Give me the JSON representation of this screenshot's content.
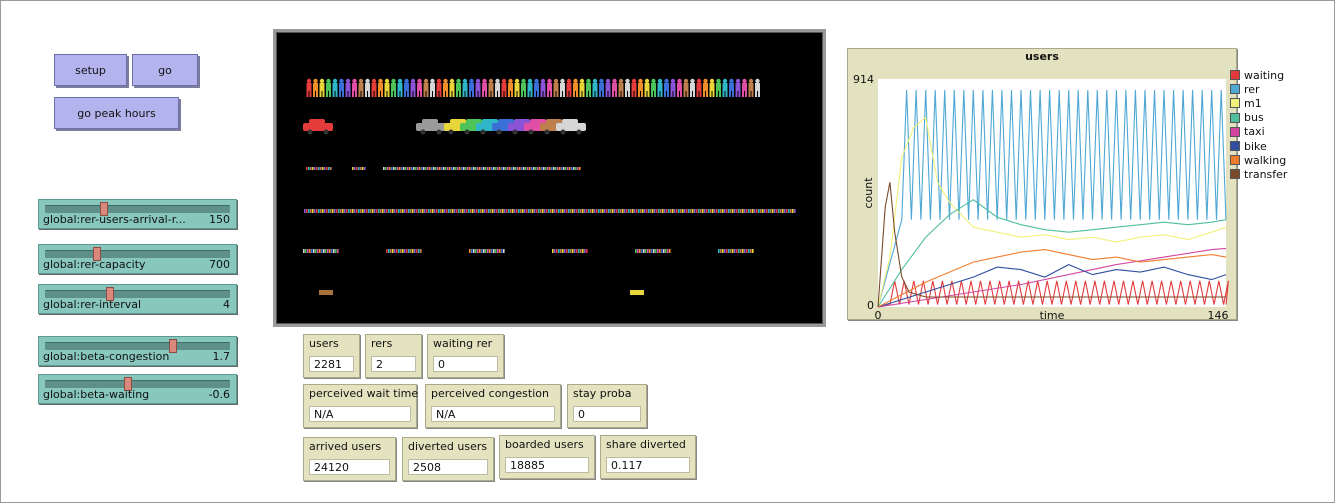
{
  "buttons": {
    "setup": "setup",
    "go": "go",
    "go_peak_hours": "go peak hours"
  },
  "sliders": [
    {
      "label": "global:rer-users-arrival-r...",
      "value": "150",
      "fraction": 0.31
    },
    {
      "label": "global:rer-capacity",
      "value": "700",
      "fraction": 0.27
    },
    {
      "label": "global:rer-interval",
      "value": "4",
      "fraction": 0.34
    },
    {
      "label": "global:beta-congestion",
      "value": "1.7",
      "fraction": 0.69
    },
    {
      "label": "global:beta-waiting",
      "value": "-0.6",
      "fraction": 0.44
    }
  ],
  "monitors": {
    "users": {
      "label": "users",
      "value": "2281"
    },
    "rers": {
      "label": "rers",
      "value": "2"
    },
    "waiting_rer": {
      "label": "waiting rer",
      "value": "0"
    },
    "perceived_wait_time": {
      "label": "perceived wait time",
      "value": "N/A"
    },
    "perceived_congestion": {
      "label": "perceived congestion",
      "value": "N/A"
    },
    "stay_proba": {
      "label": "stay proba",
      "value": "0"
    },
    "arrived_users": {
      "label": "arrived users",
      "value": "24120"
    },
    "diverted_users": {
      "label": "diverted users",
      "value": "2508"
    },
    "boarded_users": {
      "label": "boarded users",
      "value": "18885"
    },
    "share_diverted": {
      "label": "share diverted",
      "value": "0.117"
    }
  },
  "view": {
    "agent_colors": [
      "#e43b3b",
      "#f08e2a",
      "#e8d53a",
      "#4cc45a",
      "#2fb7c9",
      "#3a6fd8",
      "#8b54d6",
      "#e04fa5",
      "#bf7f4c",
      "#d6d6d6"
    ]
  },
  "chart_data": {
    "type": "line",
    "title": "users",
    "xlabel": "time",
    "ylabel": "count",
    "xlim": [
      0,
      146
    ],
    "ylim": [
      0,
      914
    ],
    "x_tick_labels": [
      "0",
      "146"
    ],
    "y_tick_labels": [
      "0",
      "914"
    ],
    "legend_position": "right",
    "grid": false,
    "series": [
      {
        "name": "waiting",
        "color": "#e23a3a",
        "pattern": "sawtooth",
        "base": 10,
        "amp": 95,
        "period": 4,
        "start": 5
      },
      {
        "name": "rer",
        "color": "#4ea7d4",
        "pattern": "sawtooth",
        "base": 350,
        "amp": 520,
        "period": 4,
        "start": 10,
        "peak_max": 890
      },
      {
        "name": "m1",
        "color": "#f0f07a",
        "x": [
          0,
          5,
          10,
          15,
          20,
          25,
          30,
          40,
          50,
          60,
          70,
          80,
          90,
          100,
          110,
          120,
          130,
          140,
          146
        ],
        "y": [
          0,
          200,
          600,
          720,
          760,
          500,
          420,
          320,
          300,
          280,
          290,
          270,
          280,
          260,
          280,
          290,
          270,
          300,
          320
        ]
      },
      {
        "name": "bus",
        "color": "#4fbf9c",
        "x": [
          0,
          10,
          20,
          30,
          40,
          50,
          60,
          70,
          80,
          90,
          100,
          110,
          120,
          130,
          140,
          146
        ],
        "y": [
          0,
          150,
          280,
          370,
          430,
          360,
          330,
          310,
          300,
          310,
          320,
          330,
          340,
          330,
          340,
          350
        ]
      },
      {
        "name": "taxi",
        "color": "#d346a0",
        "x": [
          0,
          20,
          40,
          60,
          80,
          100,
          120,
          140,
          146
        ],
        "y": [
          0,
          30,
          60,
          90,
          130,
          170,
          200,
          230,
          235
        ]
      },
      {
        "name": "bike",
        "color": "#2f4ea0",
        "x": [
          0,
          20,
          40,
          50,
          60,
          70,
          80,
          90,
          100,
          110,
          120,
          130,
          140,
          146
        ],
        "y": [
          0,
          60,
          120,
          160,
          150,
          120,
          170,
          130,
          150,
          140,
          160,
          130,
          110,
          130
        ]
      },
      {
        "name": "walking",
        "color": "#f07d2e",
        "x": [
          0,
          20,
          40,
          50,
          60,
          70,
          80,
          90,
          100,
          110,
          120,
          130,
          140,
          146
        ],
        "y": [
          0,
          100,
          180,
          200,
          220,
          230,
          210,
          190,
          200,
          180,
          190,
          200,
          210,
          200
        ]
      },
      {
        "name": "transfer",
        "color": "#7a4a2a",
        "x": [
          0,
          3,
          5,
          7,
          10,
          13,
          20,
          40,
          60,
          80,
          100,
          120,
          140,
          146
        ],
        "y": [
          0,
          400,
          500,
          300,
          120,
          60,
          40,
          40,
          40,
          40,
          40,
          40,
          40,
          40
        ]
      }
    ]
  }
}
